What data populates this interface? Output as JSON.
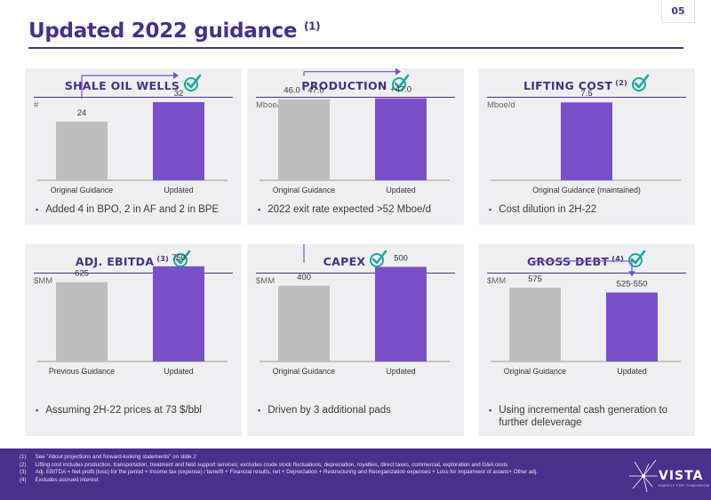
{
  "page": {
    "number": "05",
    "title": "Updated 2022 guidance",
    "title_note": "(1)"
  },
  "colors": {
    "accent": "#7b4fc9",
    "brand": "#4a2f8c",
    "teal": "#17a9a6",
    "grey_bar": "#bebebe"
  },
  "panels": [
    {
      "title": "SHALE OIL WELLS",
      "note": "",
      "unit": "#",
      "icon": "check-icon",
      "arrow": "up",
      "bullet": "Added 4 in BPO, 2 in AF and 2 in BPE",
      "chart_data": {
        "type": "bar",
        "categories": [
          "Original Guidance",
          "Updated"
        ],
        "values": [
          24,
          32
        ],
        "labels": [
          "24",
          "32"
        ],
        "ylim": [
          0,
          40
        ]
      }
    },
    {
      "title": "PRODUCTION",
      "note": "",
      "unit": "Mboe/d",
      "icon": "check-icon",
      "arrow": "up",
      "bullet": "2022 exit rate expected >52 Mboe/d",
      "chart_data": {
        "type": "bar",
        "categories": [
          "Original Guidance",
          "Updated"
        ],
        "values": [
          46.5,
          47.0
        ],
        "labels": [
          "46.0 - 47.0",
          "+47.0"
        ],
        "ylim": [
          0,
          56
        ]
      }
    },
    {
      "title": "LIFTING COST",
      "note": "(2)",
      "unit": "Mboe/d",
      "icon": "check-icon",
      "arrow": "none",
      "bullet": "Cost dilution in 2H-22",
      "chart_data": {
        "type": "bar",
        "categories": [
          "Original Guidance (maintained)"
        ],
        "values": [
          7.5
        ],
        "labels": [
          "7.5"
        ],
        "ylim": [
          0,
          9.4
        ]
      }
    },
    {
      "title": "ADJ. EBITDA",
      "note": "(3)",
      "unit": "$MM",
      "icon": "check-icon",
      "arrow": "none",
      "bullet": "Assuming 2H-22 prices at 73 $/bbl",
      "chart_data": {
        "type": "bar",
        "categories": [
          "Previous Guidance",
          "Updated"
        ],
        "values": [
          625,
          750
        ],
        "labels": [
          "625",
          "750"
        ],
        "ylim": [
          0,
          910
        ]
      }
    },
    {
      "title": "CAPEX",
      "note": "",
      "unit": "$MM",
      "icon": "check-icon",
      "arrow": "up",
      "bullet": "Driven by 3 additional pads",
      "chart_data": {
        "type": "bar",
        "categories": [
          "Original Guidance",
          "Updated"
        ],
        "values": [
          400,
          500
        ],
        "labels": [
          "400",
          "500"
        ],
        "ylim": [
          0,
          610
        ]
      }
    },
    {
      "title": "GROSS DEBT",
      "note": "(4)",
      "unit": "$MM",
      "icon": "check-icon",
      "arrow": "down",
      "bullet": "Using incremental cash generation to further deleverage",
      "chart_data": {
        "type": "bar",
        "categories": [
          "Original Guidance",
          "Updated"
        ],
        "values": [
          575,
          537.5
        ],
        "labels": [
          "575",
          "525-550"
        ],
        "ylim": [
          0,
          900
        ]
      }
    }
  ],
  "footnotes": [
    {
      "num": "(1)",
      "text": "See \"About projections and forward-looking statements\" on slide 2"
    },
    {
      "num": "(2)",
      "text": "Lifting cost includes production, transportation, treatment and field support services; excludes crude stock fluctuations, depreciation, royalties, direct taxes, commercial, exploration and G&A costs"
    },
    {
      "num": "(3)",
      "text": "Adj. EBITDA = Net profit (loss) for the period + Income tax (expense) / benefit + Financial results, net + Depreciation + Restructuring and Reorganization expenses + Loss for impairment of assets+ Other adj."
    },
    {
      "num": "(4)",
      "text": "Excludes accrued interest"
    }
  ],
  "logo": {
    "word": "VISTA",
    "tagline": "ENERGY FOR TOMORROW"
  }
}
